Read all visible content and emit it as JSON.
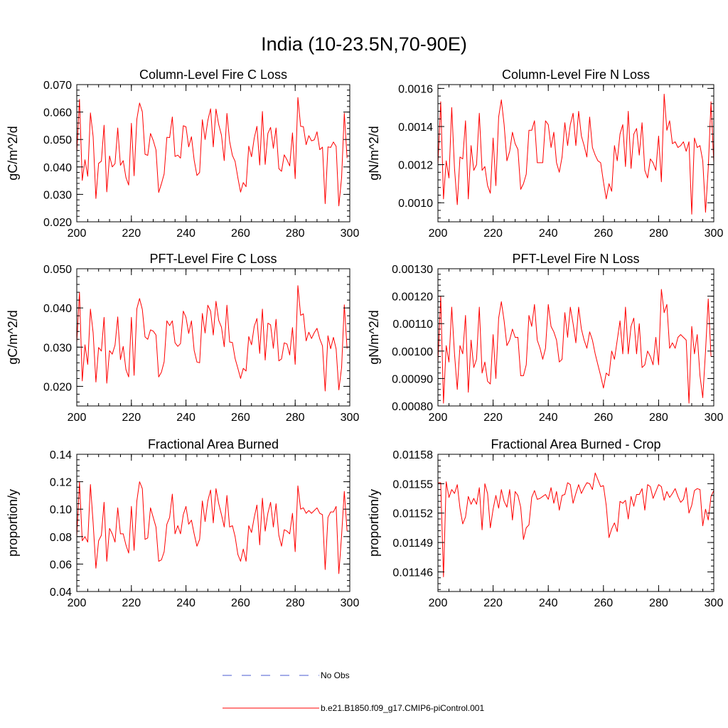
{
  "figure": {
    "title": "India (10-23.5N,70-90E)"
  },
  "legend": {
    "placement": "bottom-center",
    "entries": [
      {
        "label": "No Obs",
        "color": "#4a5ad0",
        "style": "dashed"
      },
      {
        "label": "b.e21.B1850.f09_g17.CMIP6-piControl.001",
        "color": "#ff0000",
        "style": "solid"
      }
    ]
  },
  "chart_data": [
    {
      "type": "line",
      "title": "Column-Level Fire C Loss",
      "ylabel": "gC/m^2/d",
      "xlim": [
        200,
        300
      ],
      "ylim": [
        0.02,
        0.07
      ],
      "xticks": [
        200,
        220,
        240,
        260,
        280,
        300
      ],
      "xtick_labels": [
        "200",
        "220",
        "240",
        "260",
        "280",
        "300"
      ],
      "yticks": [
        0.02,
        0.03,
        0.04,
        0.05,
        0.06,
        0.07
      ],
      "ytick_labels": [
        "0.020",
        "0.030",
        "0.040",
        "0.050",
        "0.060",
        "0.070"
      ],
      "grid": false,
      "x_start": 200,
      "x_step": 1,
      "series": [
        {
          "name": "b.e21.B1850.f09_g17.CMIP6-piControl.001",
          "color": "#ff0000",
          "values": [
            0.0452,
            0.0646,
            0.0351,
            0.0426,
            0.0366,
            0.0597,
            0.0511,
            0.0285,
            0.0413,
            0.0421,
            0.0552,
            0.0309,
            0.044,
            0.04,
            0.0412,
            0.0542,
            0.0406,
            0.0423,
            0.0362,
            0.0334,
            0.0559,
            0.0368,
            0.0574,
            0.0633,
            0.0601,
            0.0446,
            0.0442,
            0.0522,
            0.0497,
            0.0462,
            0.0307,
            0.0338,
            0.0375,
            0.0508,
            0.0507,
            0.0582,
            0.0438,
            0.0443,
            0.0432,
            0.055,
            0.0546,
            0.0473,
            0.051,
            0.0425,
            0.0369,
            0.038,
            0.0572,
            0.05,
            0.0569,
            0.0612,
            0.0473,
            0.0611,
            0.0554,
            0.0516,
            0.0423,
            0.0595,
            0.0493,
            0.0442,
            0.042,
            0.036,
            0.0308,
            0.0343,
            0.0328,
            0.0476,
            0.0437,
            0.0505,
            0.0548,
            0.0407,
            0.0602,
            0.0409,
            0.0522,
            0.0544,
            0.0468,
            0.0542,
            0.0394,
            0.0384,
            0.0444,
            0.0426,
            0.0404,
            0.0524,
            0.0357,
            0.0653,
            0.0548,
            0.0547,
            0.0481,
            0.0514,
            0.0495,
            0.0499,
            0.0528,
            0.0463,
            0.0472,
            0.0266,
            0.0473,
            0.0471,
            0.0491,
            0.0475,
            0.0258,
            0.0361,
            0.0596,
            0.0432
          ]
        }
      ]
    },
    {
      "type": "line",
      "title": "Column-Level Fire N Loss",
      "ylabel": "gN/m^2/d",
      "xlim": [
        200,
        300
      ],
      "ylim": [
        0.0009,
        0.00162
      ],
      "xticks": [
        200,
        220,
        240,
        260,
        280,
        300
      ],
      "xtick_labels": [
        "200",
        "220",
        "240",
        "260",
        "280",
        "300"
      ],
      "yticks": [
        0.001,
        0.0012,
        0.0014,
        0.0016
      ],
      "ytick_labels": [
        "0.0010",
        "0.0012",
        "0.0014",
        "0.0016"
      ],
      "grid": false,
      "x_start": 200,
      "x_step": 1,
      "series": [
        {
          "name": "b.e21.B1850.f09_g17.CMIP6-piControl.001",
          "color": "#ff0000",
          "values": [
            0.0012,
            0.00153,
            0.00102,
            0.00122,
            0.00113,
            0.0015,
            0.00118,
            0.00099,
            0.00124,
            0.00123,
            0.00143,
            0.00102,
            0.0013,
            0.00117,
            0.0012,
            0.00147,
            0.00117,
            0.00119,
            0.00109,
            0.00105,
            0.00134,
            0.00109,
            0.00145,
            0.00154,
            0.00141,
            0.00122,
            0.00127,
            0.00137,
            0.00131,
            0.00128,
            0.00107,
            0.0011,
            0.00115,
            0.00138,
            0.00138,
            0.00143,
            0.00121,
            0.00121,
            0.00121,
            0.00143,
            0.00141,
            0.00129,
            0.00137,
            0.00121,
            0.00116,
            0.00124,
            0.00142,
            0.0013,
            0.00141,
            0.00147,
            0.0013,
            0.00148,
            0.00135,
            0.0013,
            0.00124,
            0.00145,
            0.00129,
            0.00125,
            0.00122,
            0.00121,
            0.00111,
            0.00102,
            0.0011,
            0.00106,
            0.0013,
            0.00122,
            0.00136,
            0.00141,
            0.00119,
            0.00148,
            0.00118,
            0.00136,
            0.00139,
            0.00125,
            0.00142,
            0.00117,
            0.00113,
            0.00123,
            0.00121,
            0.00117,
            0.00135,
            0.00111,
            0.00157,
            0.00138,
            0.00143,
            0.00131,
            0.00132,
            0.00129,
            0.0013,
            0.00132,
            0.00127,
            0.00132,
            0.00094,
            0.00134,
            0.00129,
            0.0013,
            0.00122,
            0.00095,
            0.00118,
            0.00153,
            0.00121
          ]
        }
      ]
    },
    {
      "type": "line",
      "title": "PFT-Level Fire C Loss",
      "ylabel": "gC/m^2/d",
      "xlim": [
        200,
        300
      ],
      "ylim": [
        0.015,
        0.05
      ],
      "xticks": [
        200,
        220,
        240,
        260,
        280,
        300
      ],
      "xtick_labels": [
        "200",
        "220",
        "240",
        "260",
        "280",
        "300"
      ],
      "yticks": [
        0.02,
        0.03,
        0.04,
        0.05
      ],
      "ytick_labels": [
        "0.020",
        "0.030",
        "0.040",
        "0.050"
      ],
      "grid": false,
      "x_start": 200,
      "x_step": 1,
      "series": [
        {
          "name": "b.e21.B1850.f09_g17.CMIP6-piControl.001",
          "color": "#ff0000",
          "values": [
            0.0312,
            0.044,
            0.0214,
            0.0306,
            0.0256,
            0.0397,
            0.0337,
            0.0211,
            0.0299,
            0.029,
            0.0376,
            0.0208,
            0.0291,
            0.0282,
            0.0305,
            0.0377,
            0.0268,
            0.0302,
            0.0243,
            0.0224,
            0.0376,
            0.0228,
            0.0398,
            0.0424,
            0.0396,
            0.0326,
            0.032,
            0.0344,
            0.0341,
            0.0331,
            0.0224,
            0.0236,
            0.0263,
            0.0367,
            0.0355,
            0.0367,
            0.0311,
            0.0302,
            0.0309,
            0.0392,
            0.0376,
            0.0335,
            0.0367,
            0.0292,
            0.0262,
            0.026,
            0.0386,
            0.0336,
            0.0407,
            0.0392,
            0.0331,
            0.0417,
            0.0368,
            0.0351,
            0.0301,
            0.0407,
            0.0313,
            0.0312,
            0.0271,
            0.0246,
            0.022,
            0.0246,
            0.0239,
            0.0327,
            0.0306,
            0.0353,
            0.0373,
            0.0284,
            0.0397,
            0.0267,
            0.0361,
            0.0357,
            0.0297,
            0.0371,
            0.0265,
            0.027,
            0.0311,
            0.0308,
            0.028,
            0.035,
            0.0256,
            0.0457,
            0.0381,
            0.0385,
            0.0316,
            0.0338,
            0.0322,
            0.0337,
            0.0348,
            0.0321,
            0.0303,
            0.0188,
            0.0329,
            0.0296,
            0.0325,
            0.0295,
            0.0191,
            0.0248,
            0.0408,
            0.0296
          ]
        }
      ]
    },
    {
      "type": "line",
      "title": "PFT-Level Fire N Loss",
      "ylabel": "gN/m^2/d",
      "xlim": [
        200,
        300
      ],
      "ylim": [
        0.0008,
        0.0013
      ],
      "xticks": [
        200,
        220,
        240,
        260,
        280,
        300
      ],
      "xtick_labels": [
        "200",
        "220",
        "240",
        "260",
        "280",
        "300"
      ],
      "yticks": [
        0.0008,
        0.0009,
        0.001,
        0.0011,
        0.0012,
        0.0013
      ],
      "ytick_labels": [
        "0.00080",
        "0.00090",
        "0.00100",
        "0.00110",
        "0.00120",
        "0.00130"
      ],
      "grid": false,
      "x_start": 200,
      "x_step": 1,
      "series": [
        {
          "name": "b.e21.B1850.f09_g17.CMIP6-piControl.001",
          "color": "#ff0000",
          "values": [
            0.00096,
            0.0012,
            0.00081,
            0.00102,
            0.00096,
            0.00116,
            0.00099,
            0.00086,
            0.00102,
            0.00099,
            0.00113,
            0.00085,
            0.00104,
            0.00094,
            0.00097,
            0.00116,
            0.00092,
            0.00096,
            0.00089,
            0.00088,
            0.00106,
            0.0009,
            0.00112,
            0.00118,
            0.00111,
            0.00102,
            0.00104,
            0.00108,
            0.00105,
            0.00105,
            0.00091,
            0.00091,
            0.00095,
            0.00113,
            0.00109,
            0.00117,
            0.00104,
            0.00101,
            0.00097,
            0.00101,
            0.00117,
            0.00109,
            0.00107,
            0.00104,
            0.00096,
            0.00097,
            0.00114,
            0.00105,
            0.00116,
            0.0011,
            0.00103,
            0.00116,
            0.00108,
            0.00104,
            0.00101,
            0.00107,
            0.00104,
            0.00099,
            0.00095,
            0.00091,
            0.000865,
            0.00092,
            0.00091,
            0.001,
            0.00097,
            0.00104,
            0.00111,
            0.00099,
            0.00116,
            0.00099,
            0.00109,
            0.00112,
            0.00099,
            0.0011,
            0.00094,
            0.00095,
            0.001,
            0.00098,
            0.00095,
            0.00105,
            0.00095,
            0.001225,
            0.00114,
            0.00117,
            0.00101,
            0.00103,
            0.00101,
            0.00105,
            0.00106,
            0.00105,
            0.00104,
            0.00081,
            0.00109,
            0.00099,
            0.00106,
            0.00091,
            0.00083,
            0.001,
            0.00119,
            0.00098
          ]
        }
      ]
    },
    {
      "type": "line",
      "title": "Fractional Area Burned",
      "ylabel": "proportion/y",
      "xlim": [
        200,
        300
      ],
      "ylim": [
        0.04,
        0.14
      ],
      "xticks": [
        200,
        220,
        240,
        260,
        280,
        300
      ],
      "xtick_labels": [
        "200",
        "220",
        "240",
        "260",
        "280",
        "300"
      ],
      "yticks": [
        0.04,
        0.06,
        0.08,
        0.1,
        0.12,
        0.14
      ],
      "ytick_labels": [
        "0.04",
        "0.06",
        "0.08",
        "0.10",
        "0.12",
        "0.14"
      ],
      "grid": false,
      "x_start": 200,
      "x_step": 1,
      "series": [
        {
          "name": "b.e21.B1850.f09_g17.CMIP6-piControl.001",
          "color": "#ff0000",
          "values": [
            0.08,
            0.12,
            0.077,
            0.08,
            0.076,
            0.118,
            0.09,
            0.057,
            0.077,
            0.081,
            0.105,
            0.062,
            0.086,
            0.082,
            0.076,
            0.101,
            0.082,
            0.082,
            0.074,
            0.068,
            0.102,
            0.07,
            0.106,
            0.12,
            0.115,
            0.078,
            0.079,
            0.101,
            0.094,
            0.087,
            0.062,
            0.063,
            0.069,
            0.089,
            0.094,
            0.111,
            0.082,
            0.088,
            0.082,
            0.096,
            0.102,
            0.089,
            0.092,
            0.082,
            0.073,
            0.078,
            0.106,
            0.091,
            0.106,
            0.114,
            0.09,
            0.115,
            0.104,
            0.096,
            0.087,
            0.11,
            0.087,
            0.088,
            0.08,
            0.067,
            0.062,
            0.071,
            0.062,
            0.088,
            0.083,
            0.094,
            0.103,
            0.074,
            0.108,
            0.084,
            0.097,
            0.105,
            0.087,
            0.104,
            0.081,
            0.073,
            0.085,
            0.084,
            0.082,
            0.097,
            0.069,
            0.117,
            0.1,
            0.101,
            0.097,
            0.099,
            0.097,
            0.099,
            0.101,
            0.097,
            0.096,
            0.056,
            0.094,
            0.098,
            0.098,
            0.102,
            0.053,
            0.081,
            0.113,
            0.084
          ]
        }
      ]
    },
    {
      "type": "line",
      "title": "Fractional Area Burned - Crop",
      "ylabel": "proportion/y",
      "xlim": [
        200,
        300
      ],
      "ylim": [
        0.01144,
        0.01158
      ],
      "xticks": [
        200,
        220,
        240,
        260,
        280,
        300
      ],
      "xtick_labels": [
        "200",
        "220",
        "240",
        "260",
        "280",
        "300"
      ],
      "yticks": [
        0.01146,
        0.01149,
        0.01152,
        0.01155,
        0.01158
      ],
      "ytick_labels": [
        "0.01146",
        "0.01149",
        "0.01152",
        "0.01155",
        "0.01158"
      ],
      "grid": false,
      "x_start": 200,
      "x_step": 1,
      "series": [
        {
          "name": "b.e21.B1850.f09_g17.CMIP6-piControl.001",
          "color": "#ff0000",
          "values": [
            0.011551,
            0.011551,
            0.011455,
            0.011552,
            0.011536,
            0.011544,
            0.01154,
            0.011549,
            0.011525,
            0.011509,
            0.011516,
            0.011537,
            0.011529,
            0.011535,
            0.011529,
            0.011546,
            0.011503,
            0.01155,
            0.01154,
            0.011505,
            0.011524,
            0.011538,
            0.011525,
            0.011544,
            0.011532,
            0.011526,
            0.011544,
            0.011513,
            0.011542,
            0.011538,
            0.011526,
            0.011493,
            0.011505,
            0.011508,
            0.011536,
            0.011543,
            0.011534,
            0.011535,
            0.011537,
            0.011539,
            0.011534,
            0.011546,
            0.01153,
            0.011542,
            0.011523,
            0.011538,
            0.011539,
            0.011551,
            0.011549,
            0.01153,
            0.01154,
            0.011549,
            0.01154,
            0.011546,
            0.011551,
            0.01155,
            0.011544,
            0.011561,
            0.011554,
            0.011547,
            0.011548,
            0.011528,
            0.011495,
            0.011504,
            0.01151,
            0.011501,
            0.011532,
            0.01153,
            0.011533,
            0.011514,
            0.011537,
            0.011527,
            0.011539,
            0.011539,
            0.011545,
            0.011523,
            0.011549,
            0.011547,
            0.011535,
            0.011542,
            0.011549,
            0.011547,
            0.011533,
            0.011542,
            0.011536,
            0.01154,
            0.011545,
            0.011537,
            0.011531,
            0.011534,
            0.011546,
            0.01152,
            0.011528,
            0.011543,
            0.011545,
            0.011544,
            0.011507,
            0.011524,
            0.011513,
            0.011537,
            0.011543
          ]
        }
      ]
    }
  ]
}
